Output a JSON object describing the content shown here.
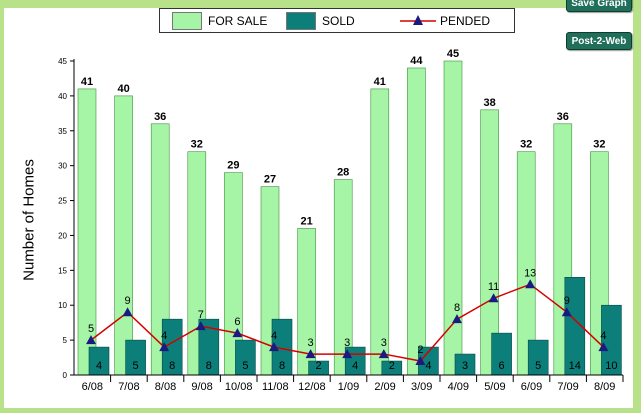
{
  "legend": {
    "for_sale": "FOR SALE",
    "sold": "SOLD",
    "pended": "PENDED"
  },
  "buttons": {
    "save_graph": "Save Graph",
    "post_to_web": "Post-2-Web"
  },
  "colors": {
    "for_sale": "#a6f5a6",
    "sold": "#0d7f7a",
    "pended_line": "#d40000",
    "pended_marker": "#1a1a80",
    "frame": "#b7e28a"
  },
  "chart_data": {
    "type": "bar",
    "categories": [
      "6/08",
      "7/08",
      "8/08",
      "9/08",
      "10/08",
      "11/08",
      "12/08",
      "1/09",
      "2/09",
      "3/09",
      "4/09",
      "5/09",
      "6/09",
      "7/09",
      "8/09"
    ],
    "series": [
      {
        "name": "FOR SALE",
        "type": "bar",
        "values": [
          41,
          40,
          36,
          32,
          29,
          27,
          21,
          28,
          41,
          44,
          45,
          38,
          32,
          36,
          32
        ]
      },
      {
        "name": "SOLD",
        "type": "bar",
        "values": [
          4,
          5,
          8,
          8,
          5,
          8,
          2,
          4,
          2,
          4,
          3,
          6,
          5,
          14,
          10
        ]
      },
      {
        "name": "PENDED",
        "type": "line",
        "values": [
          5,
          9,
          4,
          7,
          6,
          4,
          3,
          3,
          3,
          2,
          8,
          11,
          13,
          9,
          4
        ]
      }
    ],
    "ylabel": "Number of Homes",
    "xlabel": "",
    "ylim": [
      0,
      45
    ],
    "yticks": [
      0,
      5,
      10,
      15,
      20,
      25,
      30,
      35,
      40,
      45
    ],
    "legend_position": "top"
  }
}
